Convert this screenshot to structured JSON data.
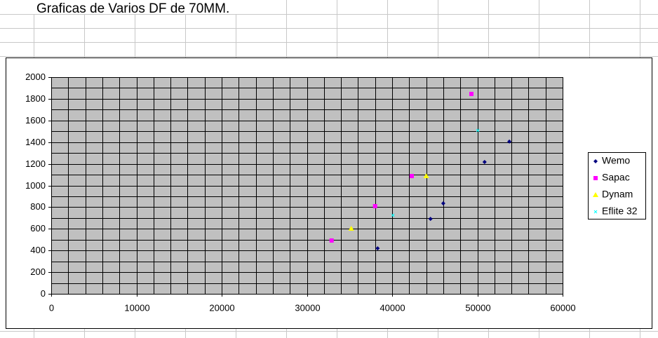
{
  "chart_data": {
    "type": "scatter",
    "title": "Graficas de Varios DF de 70MM.",
    "xlim": [
      0,
      60000
    ],
    "xticks": [
      0,
      10000,
      20000,
      30000,
      40000,
      50000,
      60000
    ],
    "x_minor_ticks": [
      0,
      2000,
      4000,
      6000,
      8000,
      10000,
      12000,
      14000,
      16000,
      18000,
      20000,
      22000,
      24000,
      26000,
      28000,
      30000,
      32000,
      34000,
      36000,
      38000,
      40000,
      42000,
      44000,
      46000,
      48000,
      50000,
      52000,
      54000,
      56000,
      58000,
      60000
    ],
    "ylim": [
      0,
      2000
    ],
    "yticks": [
      0,
      200,
      400,
      600,
      800,
      1000,
      1200,
      1400,
      1600,
      1800,
      2000
    ],
    "y_minor_ticks": [
      0,
      100,
      200,
      300,
      400,
      500,
      600,
      700,
      800,
      900,
      1000,
      1100,
      1200,
      1300,
      1400,
      1500,
      1600,
      1700,
      1800,
      1900,
      2000
    ],
    "grid": true,
    "plot_background": "#c0c0c0",
    "legend": "right",
    "series": [
      {
        "name": "Wemo",
        "color": "#000080",
        "marker": "diamond",
        "x": [
          38300,
          44500,
          46000,
          50850,
          53750
        ],
        "values": [
          420,
          692,
          835,
          1217,
          1405
        ]
      },
      {
        "name": "Sapac",
        "color": "#ff00ff",
        "marker": "square",
        "x": [
          32900,
          38000,
          42300,
          49300
        ],
        "values": [
          492,
          809,
          1087,
          1845
        ]
      },
      {
        "name": "Dynam",
        "color": "#ffff00",
        "marker": "triangle",
        "x": [
          35200,
          44000
        ],
        "values": [
          602,
          1087
        ]
      },
      {
        "name": "Eflite 32",
        "color": "#00ffff",
        "marker": "x",
        "x": [
          40100,
          50050
        ],
        "values": [
          725,
          1508
        ]
      }
    ]
  }
}
